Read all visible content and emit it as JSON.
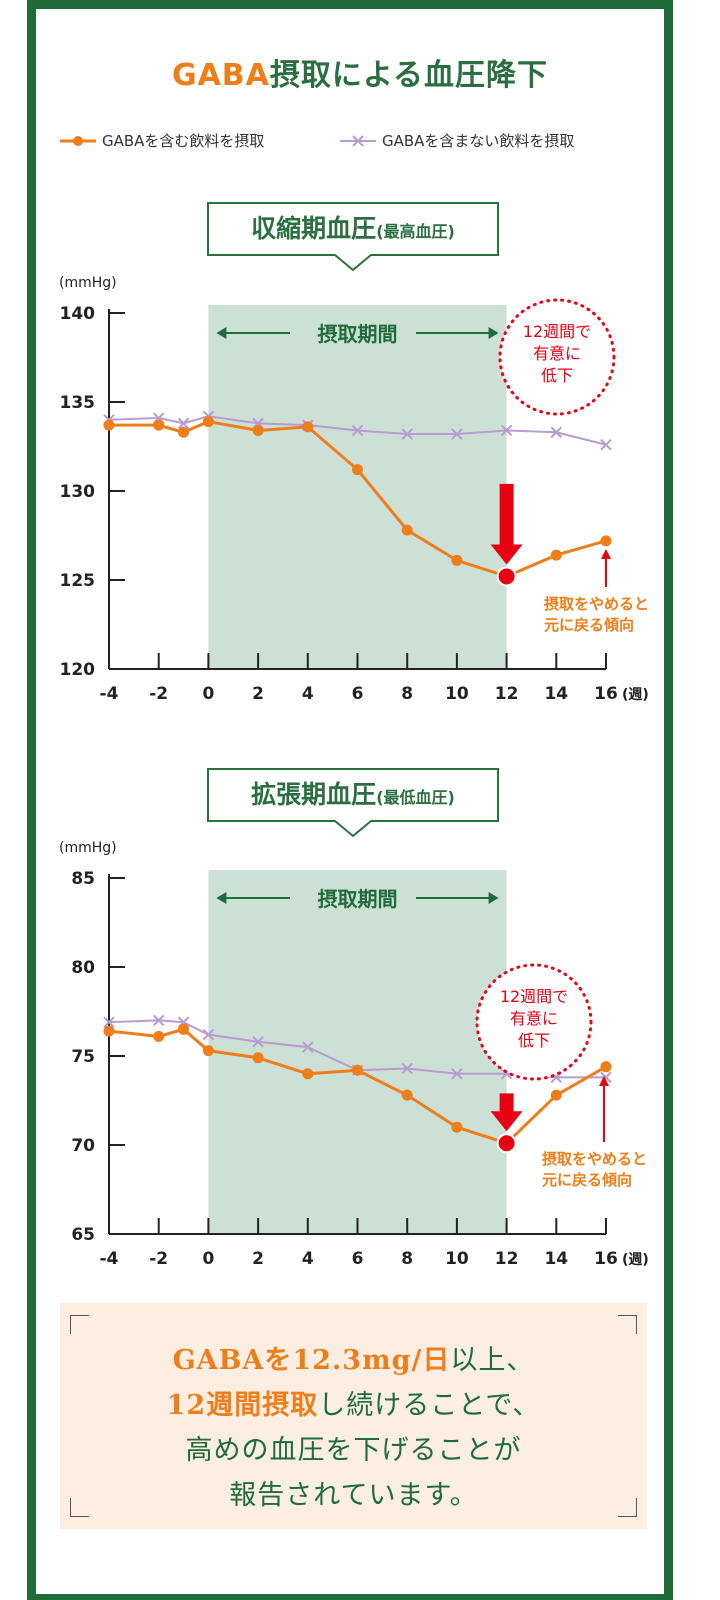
{
  "title": {
    "accent": "GABA",
    "rest": "摂取による血圧降下"
  },
  "legend": [
    {
      "label": "GABAを含む飲料を摂取",
      "color": "#ef7d1a",
      "marker": "dot"
    },
    {
      "label": "GABAを含まない飲料を摂取",
      "color": "#b89cd0",
      "marker": "cross"
    }
  ],
  "colors": {
    "brand_green": "#1f6b3a",
    "gaba": "#ef7d1a",
    "control": "#b89cd0",
    "alert_red": "#e60012",
    "shade": "#cde0d5"
  },
  "chart_data": [
    {
      "type": "line",
      "label_main": "収縮期血圧",
      "label_sub": "(最高血圧)",
      "unit": "(mmHg)",
      "xlabel_unit": "(週)",
      "xticks": [
        -4,
        -2,
        0,
        2,
        4,
        6,
        8,
        10,
        12,
        14,
        16
      ],
      "yticks": [
        140,
        135,
        130,
        125,
        120
      ],
      "ylim": [
        120,
        140
      ],
      "xlim": [
        -4,
        16
      ],
      "intake_period": {
        "from": 0,
        "to": 12,
        "label": "摂取期間"
      },
      "series": [
        {
          "name": "GABAを含む飲料を摂取",
          "x": [
            -4,
            -2,
            -1,
            0,
            2,
            4,
            6,
            8,
            10,
            12,
            14,
            16
          ],
          "values": [
            133.7,
            133.7,
            133.3,
            133.9,
            133.4,
            133.6,
            131.2,
            127.8,
            126.1,
            125.2,
            126.4,
            127.2
          ]
        },
        {
          "name": "GABAを含まない飲料を摂取",
          "x": [
            -4,
            -2,
            -1,
            0,
            2,
            4,
            6,
            8,
            10,
            12,
            14,
            16
          ],
          "values": [
            134.0,
            134.1,
            133.8,
            134.2,
            133.8,
            133.7,
            133.4,
            133.2,
            133.2,
            133.4,
            133.3,
            132.6
          ]
        }
      ],
      "callout": [
        "12週間で",
        "有意に",
        "低下"
      ],
      "note": [
        "摂取をやめると",
        "元に戻る傾向"
      ]
    },
    {
      "type": "line",
      "label_main": "拡張期血圧",
      "label_sub": "(最低血圧)",
      "unit": "(mmHg)",
      "xlabel_unit": "(週)",
      "xticks": [
        -4,
        -2,
        0,
        2,
        4,
        6,
        8,
        10,
        12,
        14,
        16
      ],
      "yticks": [
        85,
        80,
        75,
        70,
        65
      ],
      "ylim": [
        65,
        85
      ],
      "xlim": [
        -4,
        16
      ],
      "intake_period": {
        "from": 0,
        "to": 12,
        "label": "摂取期間"
      },
      "series": [
        {
          "name": "GABAを含む飲料を摂取",
          "x": [
            -4,
            -2,
            -1,
            0,
            2,
            4,
            6,
            8,
            10,
            12,
            14,
            16
          ],
          "values": [
            76.4,
            76.1,
            76.5,
            75.3,
            74.9,
            74.0,
            74.2,
            72.8,
            71.0,
            70.1,
            72.8,
            74.4
          ]
        },
        {
          "name": "GABAを含まない飲料を摂取",
          "x": [
            -4,
            -2,
            -1,
            0,
            2,
            4,
            6,
            8,
            10,
            12,
            14,
            16
          ],
          "values": [
            76.9,
            77.0,
            76.9,
            76.2,
            75.8,
            75.5,
            74.2,
            74.3,
            74.0,
            74.0,
            73.8,
            73.8
          ]
        }
      ],
      "callout": [
        "12週間で",
        "有意に",
        "低下"
      ],
      "note": [
        "摂取をやめると",
        "元に戻る傾向"
      ]
    }
  ],
  "summary": {
    "line1_em": "GABAを12.3mg/日",
    "line1_rest": "以上、",
    "line2_em": "12週間摂取",
    "line2_rest": "し続けることで、",
    "line3": "高めの血圧を下げることが",
    "line4": "報告されています。"
  }
}
